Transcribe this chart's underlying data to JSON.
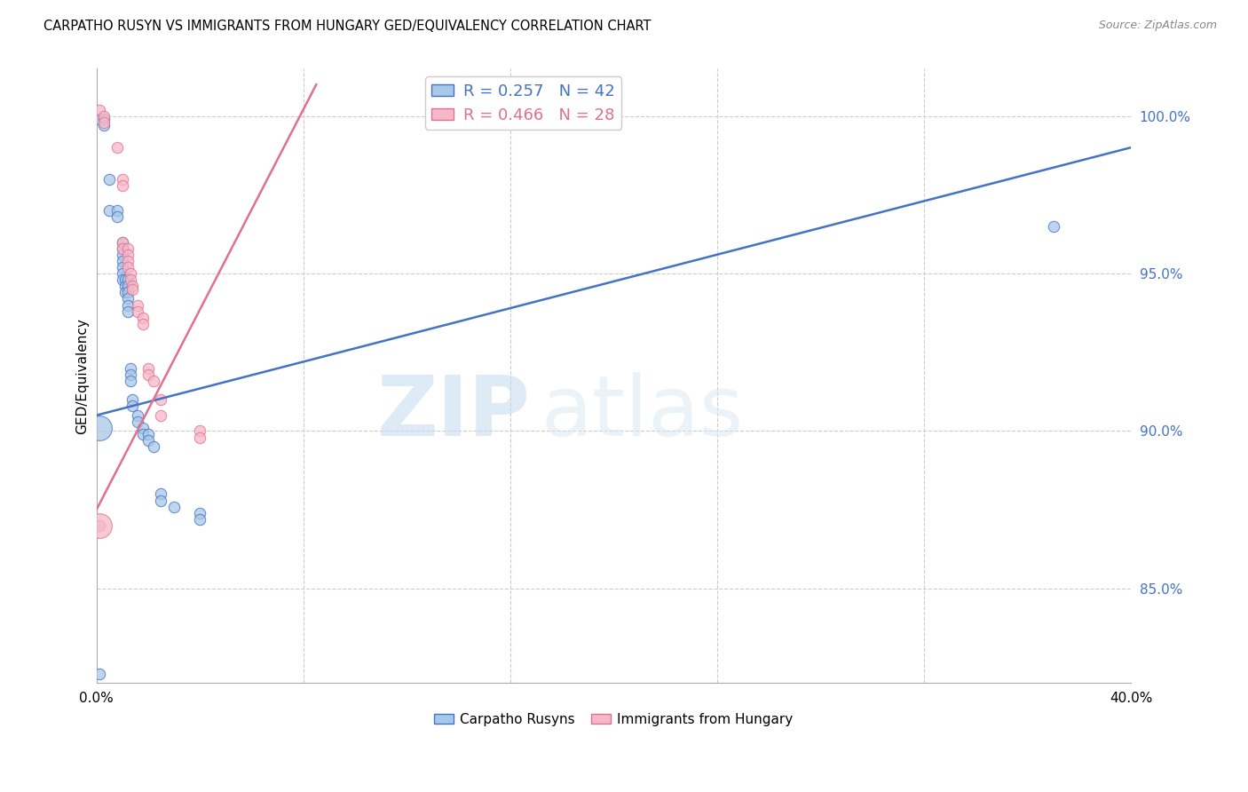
{
  "title": "CARPATHO RUSYN VS IMMIGRANTS FROM HUNGARY GED/EQUIVALENCY CORRELATION CHART",
  "source": "Source: ZipAtlas.com",
  "ylabel": "GED/Equivalency",
  "xlim": [
    0.0,
    0.4
  ],
  "ylim": [
    0.82,
    1.015
  ],
  "yticks": [
    0.85,
    0.9,
    0.95,
    1.0
  ],
  "ytick_labels": [
    "85.0%",
    "90.0%",
    "95.0%",
    "100.0%"
  ],
  "xticks": [
    0.0,
    0.08,
    0.16,
    0.24,
    0.32,
    0.4
  ],
  "xtick_labels": [
    "0.0%",
    "",
    "",
    "",
    "",
    "40.0%"
  ],
  "blue_R": 0.257,
  "blue_N": 42,
  "pink_R": 0.466,
  "pink_N": 28,
  "blue_color": "#a8c8e8",
  "pink_color": "#f5b8c8",
  "blue_line_color": "#4472c4",
  "pink_line_color": "#e07090",
  "legend_label_blue": "Carpatho Rusyns",
  "legend_label_pink": "Immigrants from Hungary",
  "watermark_zip": "ZIP",
  "watermark_atlas": "atlas",
  "blue_line_x0": 0.0,
  "blue_line_y0": 0.905,
  "blue_line_x1": 0.4,
  "blue_line_y1": 0.99,
  "pink_line_x0": 0.0,
  "pink_line_y0": 0.875,
  "pink_line_x1": 0.085,
  "pink_line_y1": 1.01,
  "blue_points": [
    [
      0.001,
      0.999
    ],
    [
      0.003,
      0.999
    ],
    [
      0.003,
      0.997
    ],
    [
      0.005,
      0.98
    ],
    [
      0.005,
      0.97
    ],
    [
      0.008,
      0.97
    ],
    [
      0.008,
      0.968
    ],
    [
      0.01,
      0.96
    ],
    [
      0.01,
      0.958
    ],
    [
      0.01,
      0.956
    ],
    [
      0.01,
      0.954
    ],
    [
      0.01,
      0.952
    ],
    [
      0.01,
      0.95
    ],
    [
      0.01,
      0.948
    ],
    [
      0.011,
      0.948
    ],
    [
      0.011,
      0.946
    ],
    [
      0.011,
      0.944
    ],
    [
      0.012,
      0.948
    ],
    [
      0.012,
      0.946
    ],
    [
      0.012,
      0.944
    ],
    [
      0.012,
      0.942
    ],
    [
      0.012,
      0.94
    ],
    [
      0.012,
      0.938
    ],
    [
      0.013,
      0.92
    ],
    [
      0.013,
      0.918
    ],
    [
      0.013,
      0.916
    ],
    [
      0.014,
      0.91
    ],
    [
      0.014,
      0.908
    ],
    [
      0.016,
      0.905
    ],
    [
      0.016,
      0.903
    ],
    [
      0.018,
      0.901
    ],
    [
      0.018,
      0.899
    ],
    [
      0.02,
      0.899
    ],
    [
      0.02,
      0.897
    ],
    [
      0.022,
      0.895
    ],
    [
      0.025,
      0.88
    ],
    [
      0.025,
      0.878
    ],
    [
      0.03,
      0.876
    ],
    [
      0.04,
      0.874
    ],
    [
      0.04,
      0.872
    ],
    [
      0.37,
      0.965
    ],
    [
      0.001,
      0.823
    ]
  ],
  "pink_points": [
    [
      0.001,
      1.002
    ],
    [
      0.003,
      1.0
    ],
    [
      0.003,
      0.998
    ],
    [
      0.008,
      0.99
    ],
    [
      0.01,
      0.98
    ],
    [
      0.01,
      0.978
    ],
    [
      0.01,
      0.96
    ],
    [
      0.01,
      0.958
    ],
    [
      0.012,
      0.958
    ],
    [
      0.012,
      0.956
    ],
    [
      0.012,
      0.954
    ],
    [
      0.012,
      0.952
    ],
    [
      0.013,
      0.95
    ],
    [
      0.013,
      0.948
    ],
    [
      0.014,
      0.946
    ],
    [
      0.014,
      0.945
    ],
    [
      0.016,
      0.94
    ],
    [
      0.016,
      0.938
    ],
    [
      0.018,
      0.936
    ],
    [
      0.018,
      0.934
    ],
    [
      0.02,
      0.92
    ],
    [
      0.02,
      0.918
    ],
    [
      0.022,
      0.916
    ],
    [
      0.025,
      0.91
    ],
    [
      0.025,
      0.905
    ],
    [
      0.04,
      0.9
    ],
    [
      0.04,
      0.898
    ],
    [
      0.001,
      0.87
    ]
  ],
  "blue_scatter_size": 80,
  "pink_scatter_size": 80,
  "big_blue_size": 400,
  "big_pink_size": 400
}
